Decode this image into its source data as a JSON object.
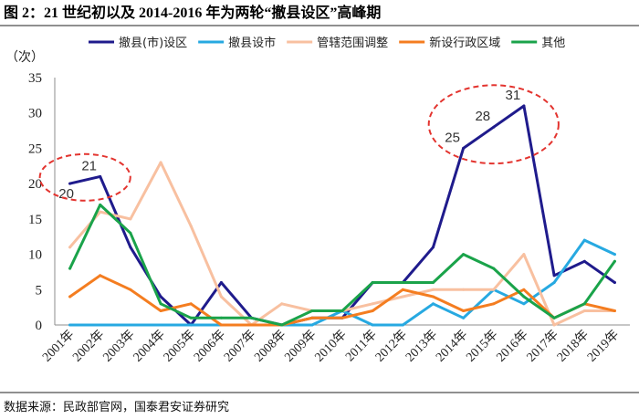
{
  "chart_data": {
    "type": "line",
    "title": "图 2：21 世纪初以及 2014-2016 年为两轮“撤县设区”高峰期",
    "ylabel": "（次）",
    "xlabel": "",
    "ylim": [
      0,
      35
    ],
    "yticks": [
      0,
      5,
      10,
      15,
      20,
      25,
      30,
      35
    ],
    "grid": false,
    "legend_position": "top",
    "categories": [
      "2001年",
      "2002年",
      "2003年",
      "2004年",
      "2005年",
      "2006年",
      "2007年",
      "2008年",
      "2009年",
      "2010年",
      "2011年",
      "2012年",
      "2013年",
      "2014年",
      "2015年",
      "2016年",
      "2017年",
      "2018年",
      "2019年"
    ],
    "series": [
      {
        "name": "撤县(市)设区",
        "color": "#1f1b8c",
        "values": [
          20,
          21,
          11,
          4,
          0,
          6,
          1,
          0,
          1,
          1,
          6,
          6,
          11,
          25,
          28,
          31,
          7,
          9,
          6
        ],
        "labels": [
          "20",
          "21",
          null,
          null,
          null,
          null,
          null,
          null,
          null,
          null,
          null,
          null,
          null,
          "25",
          "28",
          "31",
          null,
          null,
          null
        ]
      },
      {
        "name": "撤县设市",
        "color": "#27a9e1",
        "values": [
          0,
          0,
          0,
          0,
          0,
          0,
          0,
          0,
          0,
          2,
          0,
          0,
          3,
          1,
          5,
          3,
          6,
          12,
          10
        ]
      },
      {
        "name": "管辖范围调整",
        "color": "#f8c0a0",
        "values": [
          11,
          16,
          15,
          23,
          14,
          4,
          0,
          3,
          2,
          2,
          3,
          4,
          5,
          5,
          5,
          10,
          0,
          2,
          2
        ]
      },
      {
        "name": "新设行政区域",
        "color": "#f47d20",
        "values": [
          4,
          7,
          5,
          2,
          3,
          0,
          0,
          0,
          1,
          1,
          2,
          5,
          4,
          2,
          3,
          5,
          1,
          3,
          2
        ]
      },
      {
        "name": "其他",
        "color": "#1aa34a",
        "values": [
          8,
          17,
          13,
          3,
          1,
          1,
          1,
          0,
          2,
          2,
          6,
          6,
          6,
          10,
          8,
          4,
          1,
          3,
          9
        ]
      }
    ],
    "highlight_color": "#e3342f"
  },
  "source": {
    "text": "数据来源：民政部官网，国泰君安证券研究"
  }
}
